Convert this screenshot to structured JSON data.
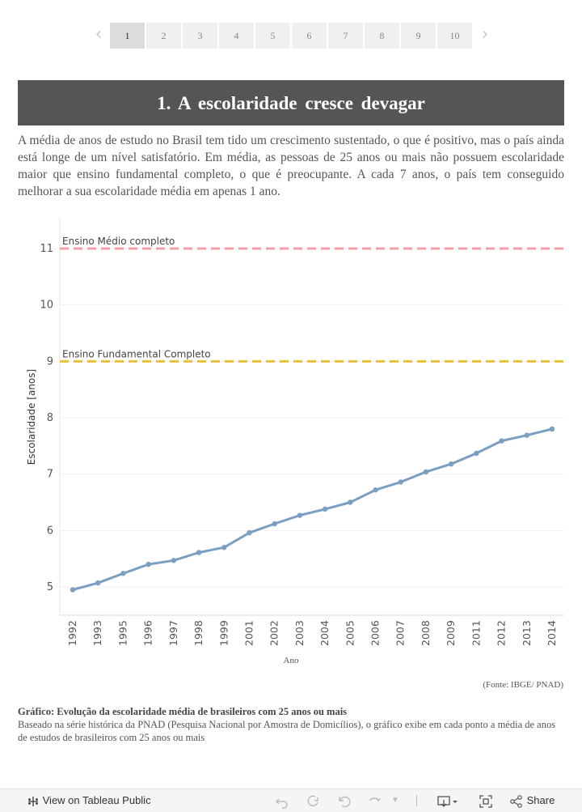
{
  "pagination": {
    "pages": [
      "1",
      "2",
      "3",
      "4",
      "5",
      "6",
      "7",
      "8",
      "9",
      "10"
    ],
    "active": "1"
  },
  "header": {
    "title": "1. A escolaridade cresce devagar"
  },
  "intro": "A média de anos de estudo no Brasil tem tido um crescimento sustentado, o que é positivo, mas o país ainda está longe de um nível satisfatório. Em média, as pessoas de 25 anos ou mais não possuem escolaridade maior que ensino fundamental completo, o que é preocupante. A cada 7 anos, o país tem conseguido melhorar a sua escolaridade média em apenas 1 ano.",
  "chart_data": {
    "type": "line",
    "title": "",
    "xlabel": "Ano",
    "ylabel": "Escolaridade [anos]",
    "ylim": [
      4.5,
      11.5
    ],
    "yticks": [
      5,
      6,
      7,
      8,
      9,
      10,
      11
    ],
    "categories": [
      "1992",
      "1993",
      "1995",
      "1996",
      "1997",
      "1998",
      "1999",
      "2001",
      "2002",
      "2003",
      "2004",
      "2005",
      "2006",
      "2007",
      "2008",
      "2009",
      "2011",
      "2012",
      "2013",
      "2014"
    ],
    "series": [
      {
        "name": "Escolaridade média",
        "values": [
          4.95,
          5.07,
          5.24,
          5.4,
          5.47,
          5.61,
          5.7,
          5.96,
          6.12,
          6.27,
          6.38,
          6.5,
          6.72,
          6.86,
          7.04,
          7.18,
          7.37,
          7.59,
          7.69,
          7.8
        ]
      }
    ],
    "reference_lines": [
      {
        "label": "Ensino Médio completo",
        "value": 11,
        "color": "#f4a0a8"
      },
      {
        "label": "Ensino Fundamental Completo",
        "value": 9,
        "color": "#e8c13c"
      }
    ],
    "line_color": "#7a9fc2"
  },
  "source": "(Fonte: IBGE/ PNAD)",
  "caption": {
    "title": "Gráfico: Evolução da escolaridade média de brasileiros com 25 anos ou mais",
    "text": "Baseado na série histórica da PNAD (Pesquisa Nacional por Amostra de Domicílios), o gráfico exibe em cada ponto a média de anos de estudos de brasileiros com 25 anos ou mais"
  },
  "toolbar": {
    "view_label": "View on Tableau Public",
    "share_label": "Share"
  }
}
